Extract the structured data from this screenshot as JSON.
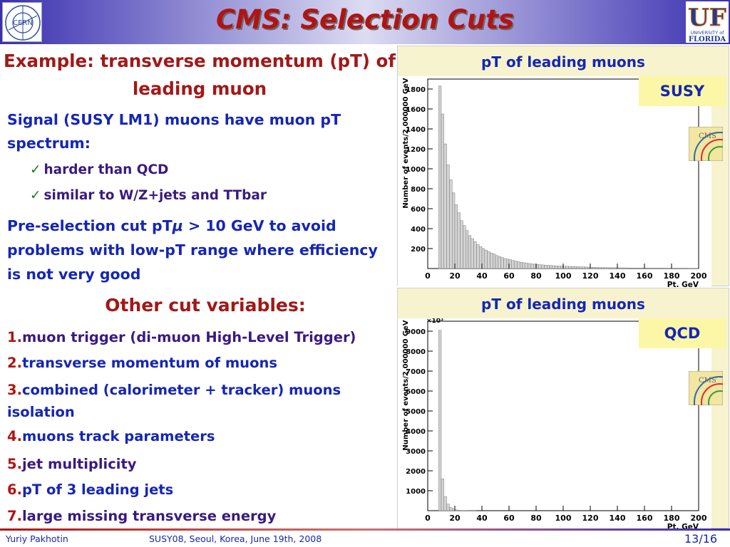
{
  "header": {
    "title": "CMS: Selection Cuts",
    "cern_logo_text": "CERN",
    "uf_logo": {
      "big": "UF",
      "line1": "UNIVERSITY of",
      "line2": "FLORIDA"
    }
  },
  "left": {
    "subhead": "Example: transverse momentum (pT) of leading muon",
    "para1": "Signal (SUSY LM1) muons have muon pT spectrum:",
    "checks": [
      "harder than QCD",
      "similar to W/Z+jets and TTbar"
    ],
    "para2_before": "Pre-selection cut pT",
    "para2_mu": "μ",
    "para2_after": " > 10 GeV to avoid problems with low-pT range where efficiency is not very good",
    "other_head": "Other cut variables:",
    "items": [
      {
        "num": "1.",
        "text": "muon trigger (di-muon High-Level Trigger)"
      },
      {
        "num": "2.",
        "text": "transverse momentum of muons"
      },
      {
        "num": "3.",
        "text": "combined (calorimeter + tracker) muons isolation"
      },
      {
        "num": "4.",
        "text": "muons track parameters"
      },
      {
        "num": "5.",
        "text": "jet multiplicity"
      },
      {
        "num": "6.",
        "text": "pT of 3 leading jets"
      },
      {
        "num": "7.",
        "text": "large missing transverse energy"
      }
    ]
  },
  "panels": [
    {
      "title": "pT of leading muons",
      "tag": "SUSY"
    },
    {
      "title": "pT of leading muons",
      "tag": "QCD"
    }
  ],
  "footer": {
    "author": "Yuriy Pakhotin",
    "event": "SUSY08, Seoul, Korea, June 19th, 2008",
    "page": "13/16"
  },
  "colors": {
    "title_red": "#b01414",
    "text_blue": "#1526b6",
    "panel_bg": "#f7f3cf",
    "tag_bg": "#fbf7a6",
    "hist_fill": "#d3d3d3"
  },
  "chart_data": [
    {
      "type": "bar",
      "xlabel": "Pt, GeV",
      "ylabel": "Number of events/2.000000 GeV",
      "xlim": [
        0,
        200
      ],
      "ylim": [
        0,
        1900
      ],
      "xticks": [
        0,
        20,
        40,
        60,
        80,
        100,
        120,
        140,
        160,
        180,
        200
      ],
      "yticks": [
        200,
        400,
        600,
        800,
        1000,
        1200,
        1400,
        1600,
        1800
      ],
      "multiplier": "",
      "bin_width": 2,
      "values": [
        0,
        0,
        0,
        0,
        1830,
        1550,
        1250,
        1040,
        890,
        760,
        640,
        560,
        480,
        430,
        380,
        330,
        300,
        270,
        240,
        220,
        200,
        185,
        170,
        155,
        145,
        130,
        120,
        110,
        100,
        95,
        88,
        80,
        74,
        68,
        62,
        58,
        54,
        50,
        46,
        43,
        40,
        38,
        36,
        34,
        32,
        30,
        28,
        26,
        25,
        24,
        23,
        22,
        21,
        20,
        19,
        18,
        17,
        16,
        15,
        14,
        13,
        12,
        11,
        10,
        10,
        9,
        9,
        8,
        8,
        8,
        7,
        7,
        7,
        6,
        6,
        6,
        5,
        5,
        5,
        5,
        5,
        4,
        4,
        4,
        4,
        4,
        4,
        3,
        3,
        3,
        3,
        3,
        3,
        3,
        3,
        3,
        2,
        2,
        2,
        2
      ]
    },
    {
      "type": "bar",
      "xlabel": "Pt, GeV",
      "ylabel": "Number of events/2.000000 GeV",
      "xlim": [
        0,
        200
      ],
      "ylim": [
        0,
        9500
      ],
      "xticks": [
        0,
        20,
        40,
        60,
        80,
        100,
        120,
        140,
        160,
        180,
        200
      ],
      "yticks": [
        1000,
        2000,
        3000,
        4000,
        5000,
        6000,
        7000,
        8000,
        9000
      ],
      "multiplier": "×10³",
      "bin_width": 2,
      "values": [
        0,
        0,
        0,
        0,
        9050,
        1600,
        700,
        330,
        160,
        80,
        40,
        20,
        10,
        6,
        4,
        2,
        1,
        1,
        0,
        0,
        0,
        0,
        0,
        0,
        0,
        0,
        0,
        0,
        0,
        0,
        0,
        0,
        0,
        0,
        0,
        0,
        0,
        0,
        0,
        0,
        0,
        0,
        0,
        0,
        0,
        0,
        0,
        0,
        0,
        0,
        0,
        0,
        0,
        0,
        0,
        0,
        0,
        0,
        0,
        0,
        0,
        0,
        0,
        0,
        0,
        0,
        0,
        0,
        0,
        0,
        0,
        0,
        0,
        0,
        0,
        0,
        0,
        0,
        0,
        0,
        0,
        0,
        0,
        0,
        0,
        0,
        0,
        0,
        0,
        0,
        0,
        0,
        0,
        0,
        0,
        0,
        0,
        0,
        0,
        0
      ]
    }
  ]
}
